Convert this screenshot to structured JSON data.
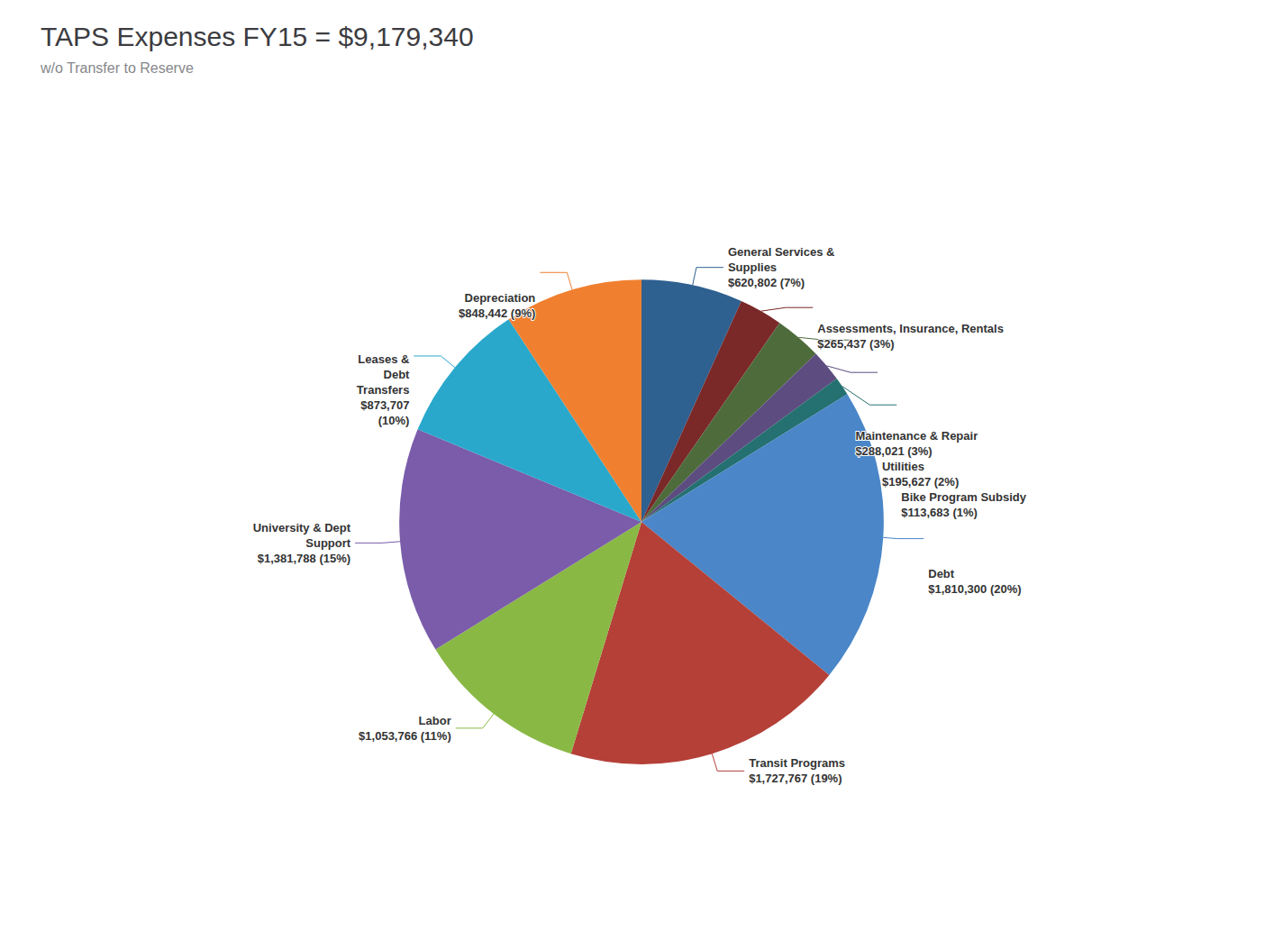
{
  "chart_data": {
    "type": "pie",
    "title": "TAPS Expenses FY15 = $9,179,340",
    "subtitle": "w/o Transfer to Reserve",
    "categories": [
      "General Services &\nSupplies",
      "Assessments, Insurance, Rentals",
      "Maintenance & Repair",
      "Utilities",
      "Bike Program Subsidy",
      "Debt",
      "Transit Programs",
      "Labor",
      "University & Dept\nSupport",
      "Leases &\nDebt\nTransfers",
      "Depreciation"
    ],
    "values": [
      620802,
      265437,
      288021,
      195627,
      113683,
      1810300,
      1727767,
      1053766,
      1381788,
      873707,
      848442
    ],
    "value_labels": [
      "$620,802 (7%)",
      "$265,437 (3%)",
      "$288,021 (3%)",
      "$195,627 (2%)",
      "$113,683 (1%)",
      "$1,810,300 (20%)",
      "$1,727,767 (19%)",
      "$1,053,766 (11%)",
      "$1,381,788 (15%)",
      "$873,707\n(10%)",
      "$848,442 (9%)"
    ],
    "colors": [
      "#2E6090",
      "#7A2828",
      "#4E6B3C",
      "#5C4C80",
      "#257070",
      "#4A86C8",
      "#B44038",
      "#8AB845",
      "#7A5CAA",
      "#29A8CC",
      "#F08030"
    ],
    "data_labels": true
  }
}
